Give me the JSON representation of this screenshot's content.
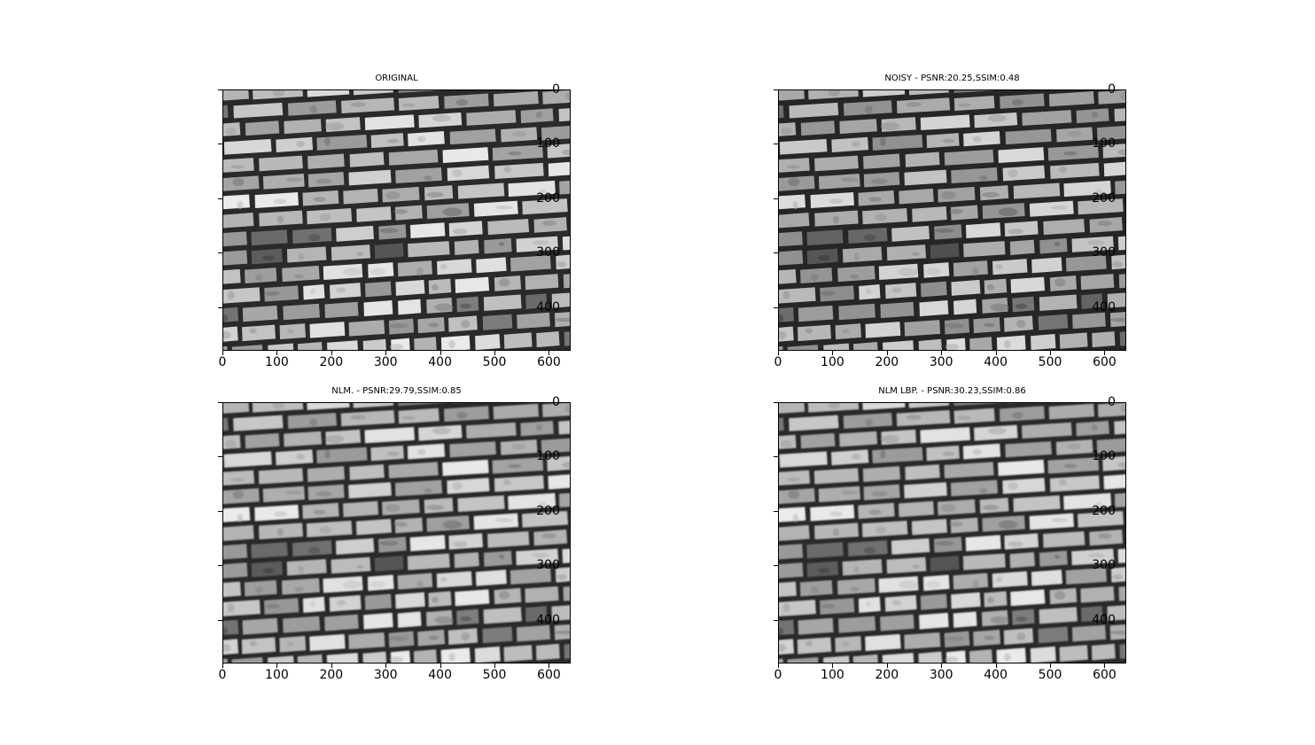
{
  "figure": {
    "panels": [
      {
        "title": "ORIGINAL",
        "variant": "original"
      },
      {
        "title": "NOISY - PSNR:20.25,SSIM:0.48",
        "variant": "noisy"
      },
      {
        "title": "NLM. - PSNR:29.79,SSIM:0.85",
        "variant": "smooth"
      },
      {
        "title": "NLM LBP. - PSNR:30.23,SSIM:0.86",
        "variant": "smooth"
      }
    ],
    "xticks": [
      "0",
      "100",
      "200",
      "300",
      "400",
      "500",
      "600"
    ],
    "yticks": [
      "0",
      "100",
      "200",
      "300",
      "400"
    ],
    "image_width": 640,
    "image_height": 480,
    "content": "grayscale photo of a brick wall"
  }
}
